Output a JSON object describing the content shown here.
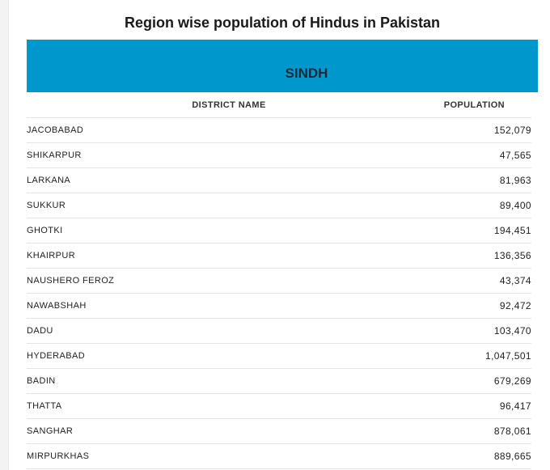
{
  "title": "Region wise population of Hindus in Pakistan",
  "region": "SINDH",
  "columns": {
    "district": "DISTRICT NAME",
    "population": "POPULATION"
  },
  "rows": [
    {
      "district": "JACOBABAD",
      "population": "152,079"
    },
    {
      "district": "SHIKARPUR",
      "population": "47,565"
    },
    {
      "district": "LARKANA",
      "population": "81,963"
    },
    {
      "district": "SUKKUR",
      "population": "89,400"
    },
    {
      "district": "GHOTKI",
      "population": "194,451"
    },
    {
      "district": "KHAIRPUR",
      "population": "136,356"
    },
    {
      "district": "NAUSHERO FEROZ",
      "population": "43,374"
    },
    {
      "district": "NAWABSHAH",
      "population": "92,472"
    },
    {
      "district": "DADU",
      "population": "103,470"
    },
    {
      "district": "HYDERABAD",
      "population": "1,047,501"
    },
    {
      "district": "BADIN",
      "population": "679,269"
    },
    {
      "district": "THATTA",
      "population": "96,417"
    },
    {
      "district": "SANGHAR",
      "population": "878,061"
    },
    {
      "district": "MIRPURKHAS",
      "population": "889,665"
    }
  ],
  "colors": {
    "banner": "#0098cc"
  }
}
